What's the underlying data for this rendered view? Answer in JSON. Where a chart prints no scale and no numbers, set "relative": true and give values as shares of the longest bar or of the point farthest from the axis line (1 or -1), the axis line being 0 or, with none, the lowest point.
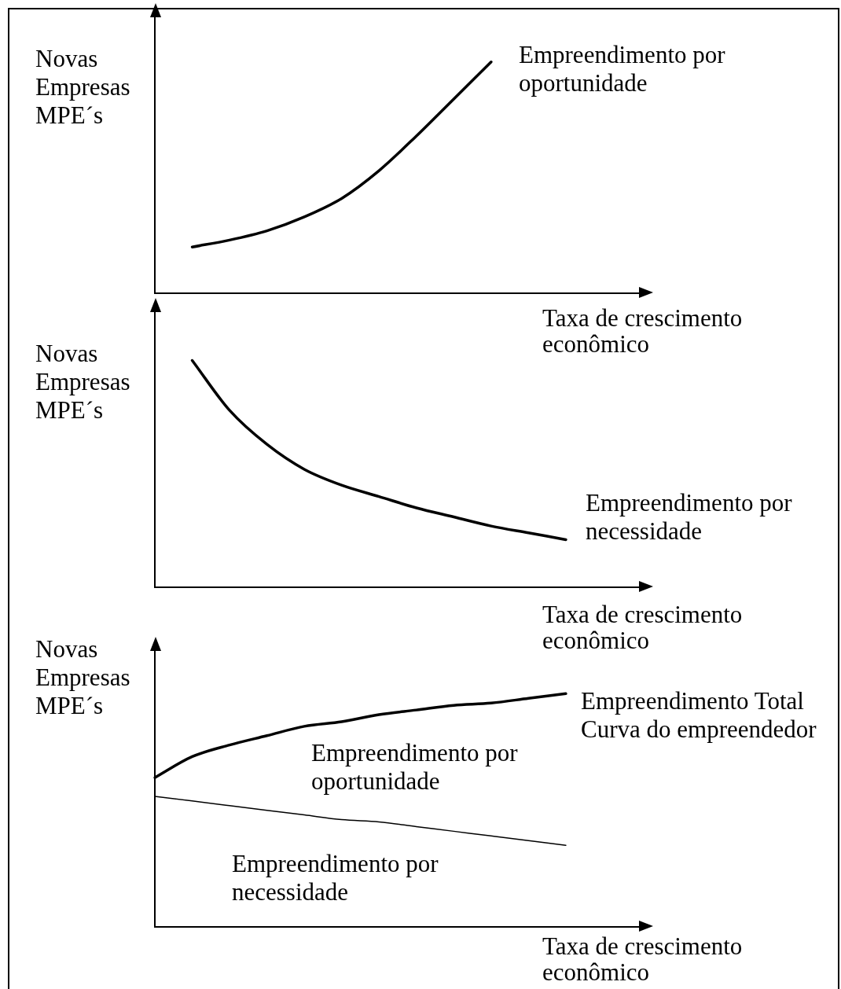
{
  "chart_data": [
    {
      "type": "line",
      "relative": true,
      "marker": "none",
      "ylabel": "Novas Empresas MPE´s",
      "xlabel": "Taxa de crescimento econômico",
      "categories": [
        null,
        null,
        null,
        null,
        null,
        null,
        null,
        null,
        null,
        null,
        null,
        null,
        null,
        null
      ],
      "series": [
        {
          "name": "Empreendimento por oportunidade",
          "color": "#000000",
          "values": [
            null,
            0.2,
            0.23,
            0.27,
            0.33,
            0.41,
            0.53,
            0.68,
            0.84,
            1,
            null,
            null,
            null,
            null
          ]
        }
      ]
    },
    {
      "type": "line",
      "relative": true,
      "marker": "none",
      "ylabel": "Novas Empresas MPE´s",
      "xlabel": "Taxa de crescimento econômico",
      "categories": [
        null,
        null,
        null,
        null,
        null,
        null,
        null,
        null,
        null,
        null,
        null,
        null,
        null,
        null
      ],
      "series": [
        {
          "name": "Empreendimento por necessidade",
          "color": "#000000",
          "values": [
            null,
            1,
            0.78,
            0.63,
            0.52,
            0.45,
            0.4,
            0.35,
            0.31,
            0.27,
            0.24,
            0.21,
            null,
            null
          ]
        }
      ]
    },
    {
      "type": "line",
      "relative": true,
      "marker": "none",
      "ylabel": "Novas Empresas MPE´s",
      "xlabel": "Taxa de crescimento econômico",
      "annotations": [
        "Empreendimento por oportunidade",
        "Empreendimento por necessidade"
      ],
      "categories": [
        null,
        null,
        null,
        null,
        null,
        null,
        null,
        null,
        null,
        null,
        null,
        null,
        null,
        null
      ],
      "series": [
        {
          "name": "Empreendimento Total Curva do empreendedor",
          "color": "#000000",
          "values": [
            0.64,
            0.73,
            0.78,
            0.82,
            0.86,
            0.88,
            0.91,
            0.93,
            0.95,
            0.96,
            0.98,
            1,
            null,
            null
          ]
        },
        {
          "color": "#000000",
          "values": [
            0.56,
            0.54,
            0.52,
            0.5,
            0.48,
            0.46,
            0.45,
            0.43,
            0.41,
            0.39,
            0.37,
            0.35,
            null,
            null
          ]
        }
      ]
    }
  ]
}
